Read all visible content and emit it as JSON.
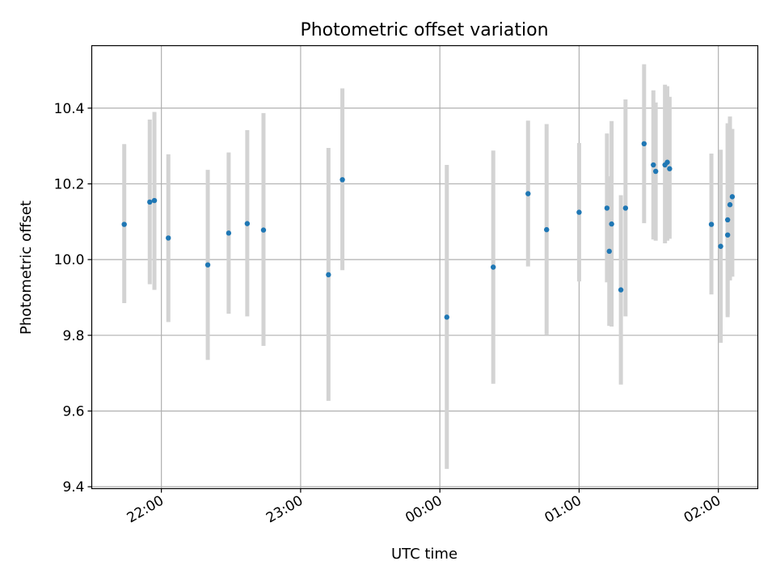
{
  "chart_data": {
    "type": "scatter",
    "title": "Photometric offset variation",
    "xlabel": "UTC time",
    "ylabel": "Photometric offset",
    "grid": true,
    "colors": {
      "marker": "#1f77b4",
      "errorbar": "#d3d3d3",
      "grid": "#b0b0b0"
    },
    "x_unit": "time of day (hh:mm, UTC), ticks from 22:00 to 02:00",
    "xlim": [
      "21:30",
      "02:17"
    ],
    "ylim": [
      9.395,
      10.565
    ],
    "x_ticks": [
      "22:00",
      "23:00",
      "00:00",
      "01:00",
      "02:00"
    ],
    "y_ticks": [
      "9.4",
      "9.6",
      "9.8",
      "10.0",
      "10.2",
      "10.4"
    ],
    "series": [
      {
        "points": [
          {
            "x": "21:44",
            "y": 10.093,
            "err_low": 9.885,
            "err_high": 10.305
          },
          {
            "x": "21:55",
            "y": 10.152,
            "err_low": 9.935,
            "err_high": 10.37
          },
          {
            "x": "21:57",
            "y": 10.156,
            "err_low": 9.92,
            "err_high": 10.39
          },
          {
            "x": "22:03",
            "y": 10.057,
            "err_low": 9.835,
            "err_high": 10.278
          },
          {
            "x": "22:20",
            "y": 9.986,
            "err_low": 9.735,
            "err_high": 10.237
          },
          {
            "x": "22:29",
            "y": 10.07,
            "err_low": 9.857,
            "err_high": 10.283
          },
          {
            "x": "22:37",
            "y": 10.095,
            "err_low": 9.85,
            "err_high": 10.342
          },
          {
            "x": "22:44",
            "y": 10.078,
            "err_low": 9.772,
            "err_high": 10.387
          },
          {
            "x": "23:12",
            "y": 9.96,
            "err_low": 9.627,
            "err_high": 10.295
          },
          {
            "x": "23:18",
            "y": 10.211,
            "err_low": 9.972,
            "err_high": 10.452
          },
          {
            "x": "00:03",
            "y": 9.848,
            "err_low": 9.447,
            "err_high": 10.25
          },
          {
            "x": "00:23",
            "y": 9.98,
            "err_low": 9.672,
            "err_high": 10.288
          },
          {
            "x": "00:38",
            "y": 10.174,
            "err_low": 9.982,
            "err_high": 10.367
          },
          {
            "x": "00:46",
            "y": 10.079,
            "err_low": 9.802,
            "err_high": 10.358
          },
          {
            "x": "01:00",
            "y": 10.125,
            "err_low": 9.942,
            "err_high": 10.308
          },
          {
            "x": "01:12",
            "y": 10.136,
            "err_low": 9.94,
            "err_high": 10.333
          },
          {
            "x": "01:13",
            "y": 10.022,
            "err_low": 9.825,
            "err_high": 10.22
          },
          {
            "x": "01:14",
            "y": 10.094,
            "err_low": 9.823,
            "err_high": 10.366
          },
          {
            "x": "01:18",
            "y": 9.92,
            "err_low": 9.67,
            "err_high": 10.17
          },
          {
            "x": "01:20",
            "y": 10.136,
            "err_low": 9.85,
            "err_high": 10.423
          },
          {
            "x": "01:28",
            "y": 10.306,
            "err_low": 10.096,
            "err_high": 10.516
          },
          {
            "x": "01:32",
            "y": 10.25,
            "err_low": 10.053,
            "err_high": 10.447
          },
          {
            "x": "01:33",
            "y": 10.233,
            "err_low": 10.05,
            "err_high": 10.415
          },
          {
            "x": "01:37",
            "y": 10.25,
            "err_low": 10.043,
            "err_high": 10.462
          },
          {
            "x": "01:38",
            "y": 10.257,
            "err_low": 10.05,
            "err_high": 10.458
          },
          {
            "x": "01:39",
            "y": 10.24,
            "err_low": 10.055,
            "err_high": 10.43
          },
          {
            "x": "01:57",
            "y": 10.093,
            "err_low": 9.908,
            "err_high": 10.28
          },
          {
            "x": "02:01",
            "y": 10.035,
            "err_low": 9.78,
            "err_high": 10.29
          },
          {
            "x": "02:04",
            "y": 10.105,
            "err_low": 9.855,
            "err_high": 10.356
          },
          {
            "x": "02:04",
            "y": 10.065,
            "err_low": 9.848,
            "err_high": 10.36
          },
          {
            "x": "02:05",
            "y": 10.145,
            "err_low": 9.945,
            "err_high": 10.378
          },
          {
            "x": "02:06",
            "y": 10.166,
            "err_low": 9.955,
            "err_high": 10.345
          }
        ]
      }
    ]
  }
}
